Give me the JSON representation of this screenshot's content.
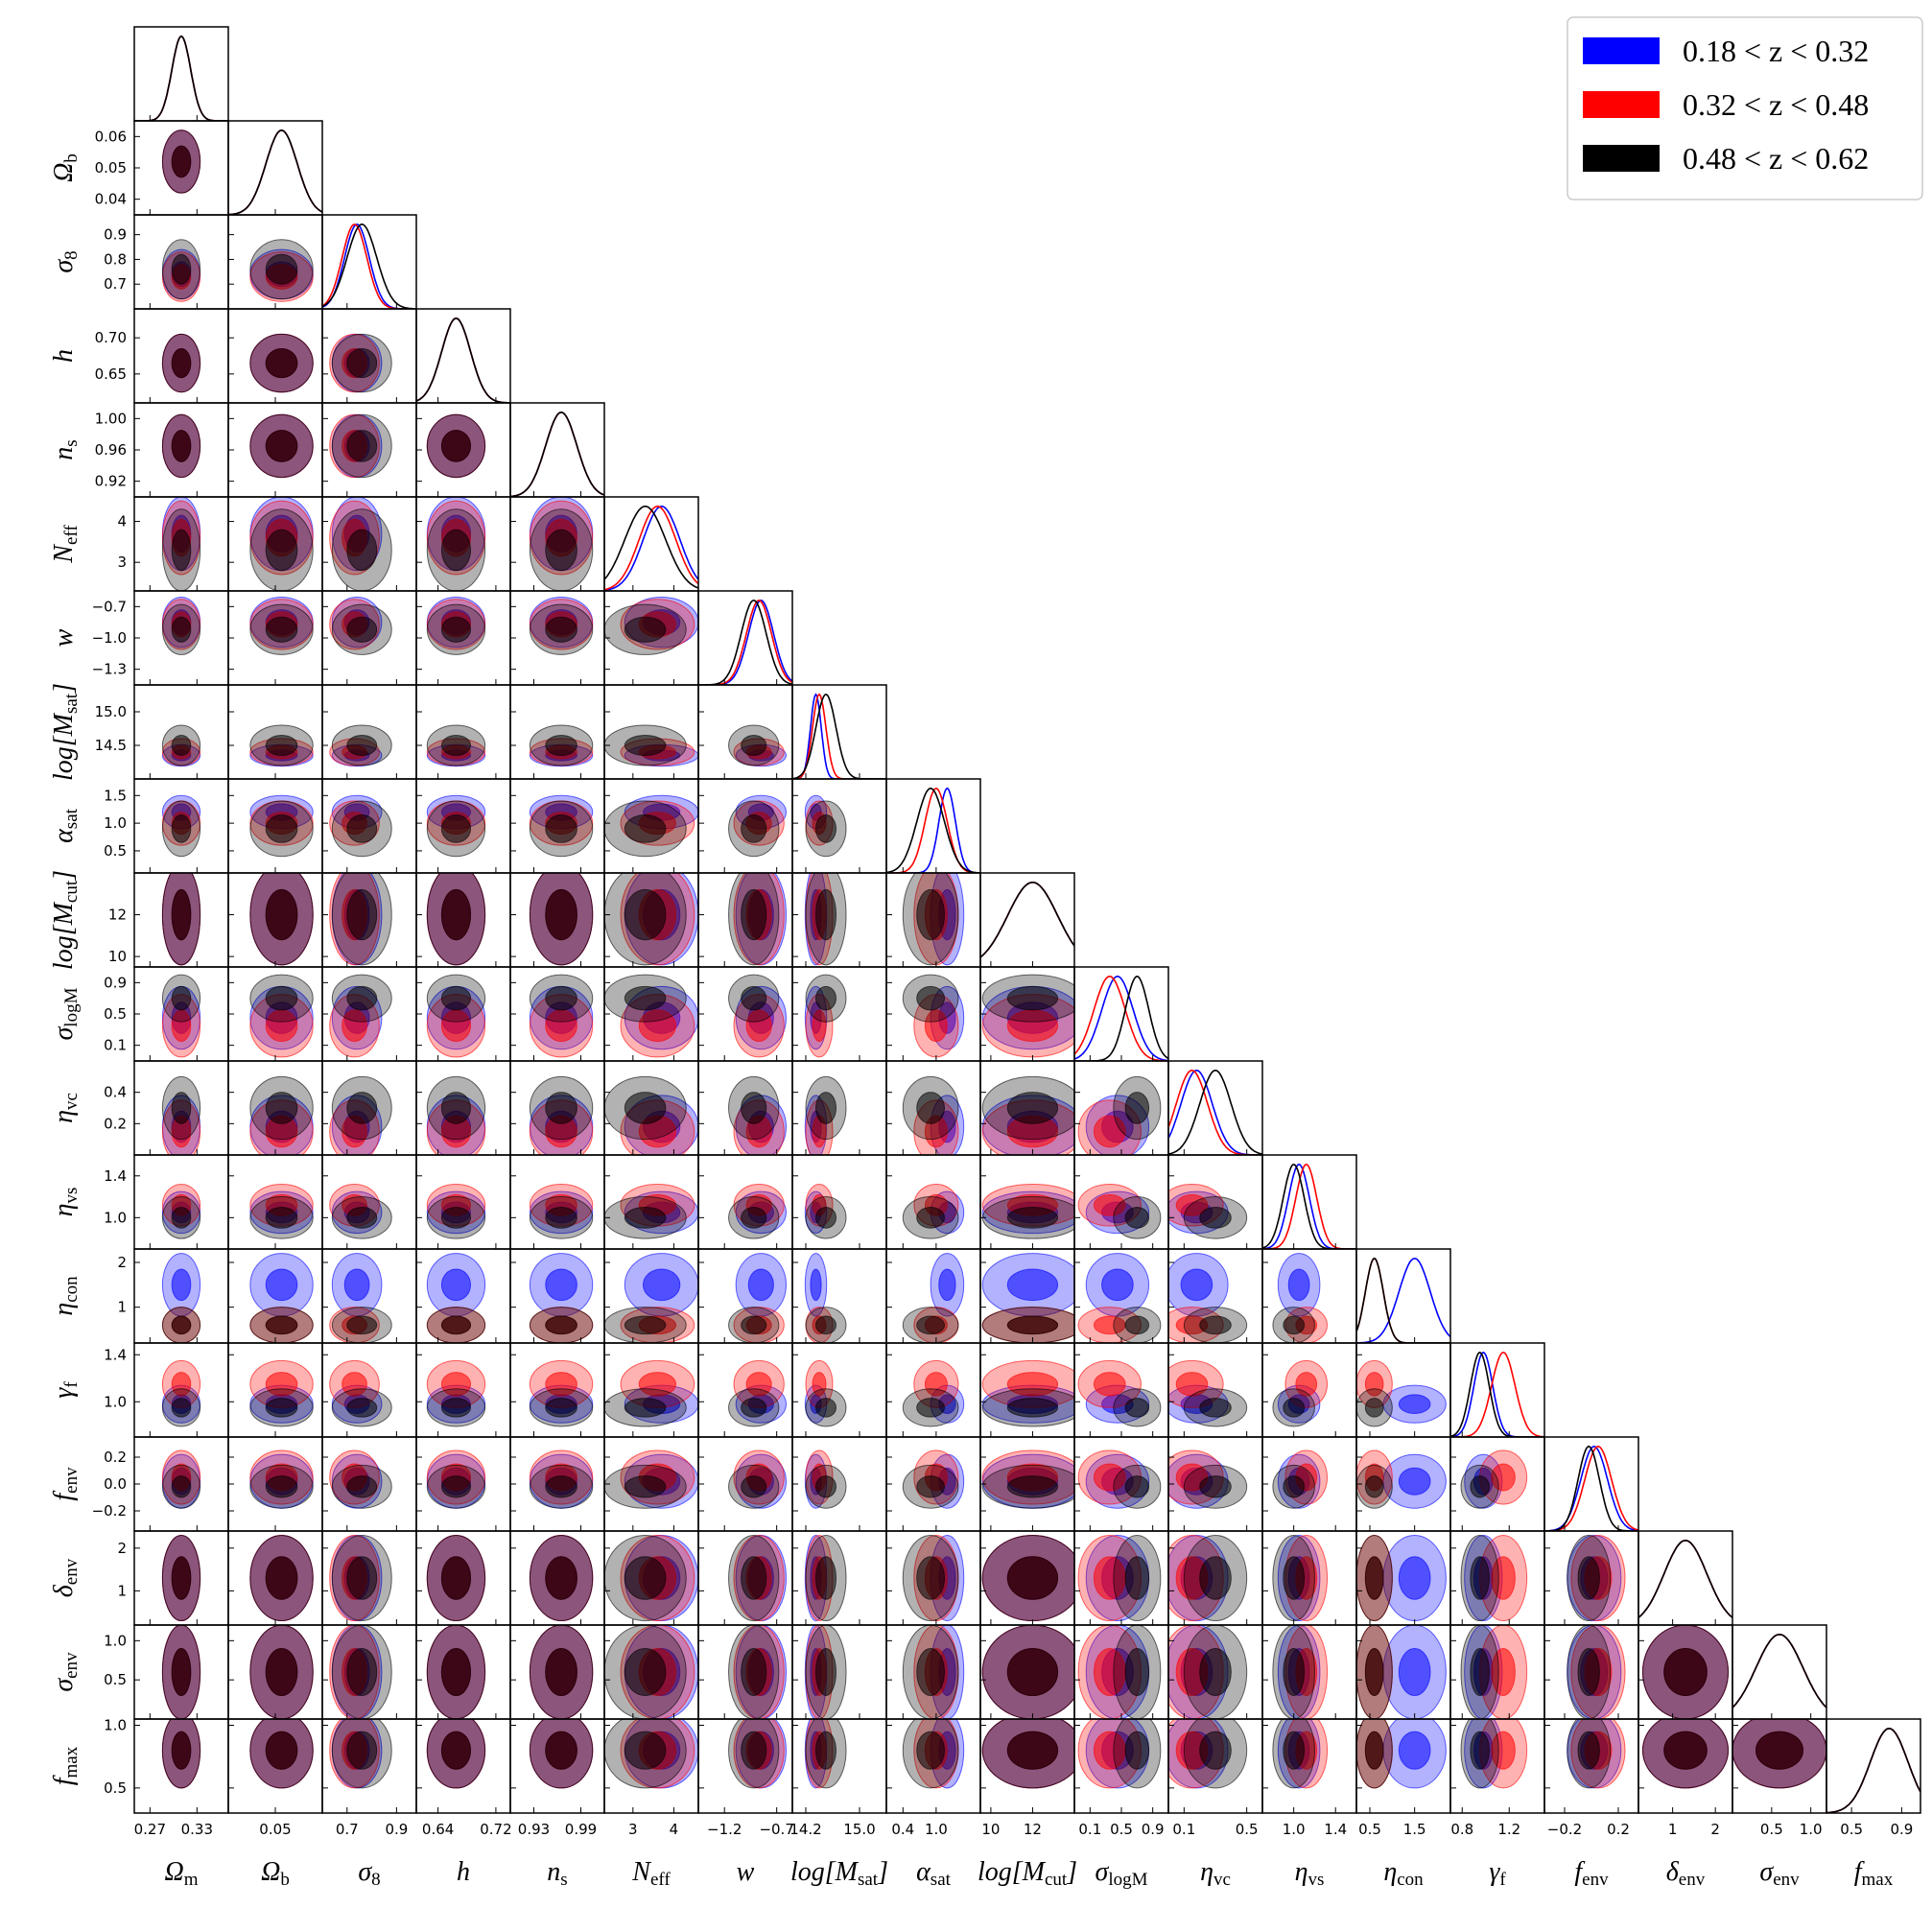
{
  "chart_data": {
    "type": "corner",
    "legend": "upper right",
    "series": [
      {
        "name": "0.18 < z < 0.32",
        "color": "#0000ff",
        "mean": [
          0.31,
          0.052,
          0.74,
          0.665,
          0.965,
          3.7,
          -0.85,
          14.35,
          1.2,
          12,
          0.45,
          0.18,
          1.05,
          1.5,
          0.98,
          0.02,
          1.3,
          0.6,
          0.8
        ],
        "std": [
          0.012,
          0.005,
          0.05,
          0.02,
          0.02,
          0.45,
          0.12,
          0.08,
          0.15,
          1.2,
          0.2,
          0.1,
          0.1,
          0.35,
          0.08,
          0.1,
          0.5,
          0.3,
          0.15
        ]
      },
      {
        "name": "0.32 < z < 0.48",
        "color": "#ff0000",
        "mean": [
          0.31,
          0.052,
          0.73,
          0.665,
          0.965,
          3.6,
          -0.87,
          14.4,
          1.0,
          12,
          0.35,
          0.15,
          1.12,
          0.6,
          1.15,
          0.05,
          1.3,
          0.6,
          0.8
        ],
        "std": [
          0.012,
          0.005,
          0.05,
          0.02,
          0.02,
          0.45,
          0.12,
          0.1,
          0.2,
          1.2,
          0.2,
          0.1,
          0.1,
          0.2,
          0.1,
          0.1,
          0.5,
          0.3,
          0.15
        ]
      },
      {
        "name": "0.48 < z < 0.62",
        "color": "#000000",
        "mean": [
          0.31,
          0.052,
          0.76,
          0.665,
          0.965,
          3.3,
          -0.92,
          14.5,
          0.9,
          12,
          0.7,
          0.3,
          1.0,
          0.6,
          0.95,
          -0.02,
          1.3,
          0.6,
          0.8
        ],
        "std": [
          0.012,
          0.005,
          0.06,
          0.02,
          0.02,
          0.5,
          0.12,
          0.15,
          0.25,
          1.2,
          0.15,
          0.1,
          0.1,
          0.2,
          0.08,
          0.08,
          0.5,
          0.3,
          0.15
        ]
      }
    ],
    "params": [
      {
        "label": [
          {
            "t": "Ω"
          },
          {
            "t": "m",
            "sub": true
          }
        ],
        "lim": [
          0.25,
          0.37
        ],
        "xticks": [
          0.27,
          0.33
        ],
        "yticks": []
      },
      {
        "label": [
          {
            "t": "Ω"
          },
          {
            "t": "b",
            "sub": true
          }
        ],
        "lim": [
          0.035,
          0.065
        ],
        "xticks": [
          0.05
        ],
        "yticks": [
          0.04,
          0.05,
          0.06
        ]
      },
      {
        "label": [
          {
            "t": "σ"
          },
          {
            "t": "8",
            "sub": true
          }
        ],
        "lim": [
          0.6,
          0.98
        ],
        "xticks": [
          0.7,
          0.9
        ],
        "yticks": [
          0.7,
          0.8,
          0.9
        ]
      },
      {
        "label": [
          {
            "t": "h"
          }
        ],
        "lim": [
          0.61,
          0.74
        ],
        "xticks": [
          0.64,
          0.72
        ],
        "yticks": [
          0.65,
          {
            "value": 0.7,
            "label": "0.70"
          }
        ]
      },
      {
        "label": [
          {
            "t": "n"
          },
          {
            "t": "s",
            "sub": true
          }
        ],
        "lim": [
          0.9,
          1.02
        ],
        "xticks": [
          0.93,
          0.99
        ],
        "yticks": [
          0.92,
          0.96,
          {
            "value": 1,
            "label": "1.00"
          }
        ]
      },
      {
        "label": [
          {
            "t": "N"
          },
          {
            "t": "eff",
            "sub": true
          }
        ],
        "lim": [
          2.3,
          4.6
        ],
        "xticks": [
          3,
          4
        ],
        "yticks": [
          3,
          4
        ]
      },
      {
        "label": [
          {
            "t": "w"
          }
        ],
        "lim": [
          -1.45,
          -0.55
        ],
        "xticks": [
          {
            "value": -1.2,
            "label": "−1.2"
          },
          {
            "value": -0.7,
            "label": "−0.7"
          }
        ],
        "yticks": [
          {
            "value": -1.3,
            "label": "−1.3"
          },
          {
            "value": -1,
            "label": "−1.0"
          },
          {
            "value": -0.7,
            "label": "−0.7"
          }
        ]
      },
      {
        "label": [
          {
            "t": "log[M"
          },
          {
            "t": "sat",
            "sub": true
          },
          {
            "t": "]"
          }
        ],
        "lim": [
          14.0,
          15.4
        ],
        "xticks": [
          14.2,
          {
            "value": 15,
            "label": "15.0"
          }
        ],
        "yticks": [
          14.5,
          {
            "value": 15,
            "label": "15.0"
          }
        ]
      },
      {
        "label": [
          {
            "t": "α"
          },
          {
            "t": "sat",
            "sub": true
          }
        ],
        "lim": [
          0.1,
          1.8
        ],
        "xticks": [
          0.4,
          {
            "value": 1,
            "label": "1.0"
          }
        ],
        "yticks": [
          0.5,
          {
            "value": 1,
            "label": "1.0"
          },
          1.5
        ]
      },
      {
        "label": [
          {
            "t": "log[M"
          },
          {
            "t": "cut",
            "sub": true
          },
          {
            "t": "]"
          }
        ],
        "lim": [
          9.5,
          14
        ],
        "xticks": [
          10,
          12
        ],
        "yticks": [
          10,
          12
        ]
      },
      {
        "label": [
          {
            "t": "σ"
          },
          {
            "t": "logM",
            "sub": true
          }
        ],
        "lim": [
          -0.1,
          1.1
        ],
        "xticks": [
          0.1,
          0.5,
          0.9
        ],
        "yticks": [
          0.1,
          0.5,
          0.9
        ]
      },
      {
        "label": [
          {
            "t": "η"
          },
          {
            "t": "vc",
            "sub": true
          }
        ],
        "lim": [
          0,
          0.6
        ],
        "xticks": [
          0.1,
          0.5
        ],
        "yticks": [
          0.2,
          0.4
        ]
      },
      {
        "label": [
          {
            "t": "η"
          },
          {
            "t": "vs",
            "sub": true
          }
        ],
        "lim": [
          0.7,
          1.6
        ],
        "xticks": [
          {
            "value": 1,
            "label": "1.0"
          },
          1.4
        ],
        "yticks": [
          {
            "value": 1,
            "label": "1.0"
          },
          1.4
        ]
      },
      {
        "label": [
          {
            "t": "η"
          },
          {
            "t": "con",
            "sub": true
          }
        ],
        "lim": [
          0.2,
          2.3
        ],
        "xticks": [
          0.5,
          1.5
        ],
        "yticks": [
          1,
          2
        ]
      },
      {
        "label": [
          {
            "t": "γ"
          },
          {
            "t": "f",
            "sub": true
          }
        ],
        "lim": [
          0.7,
          1.5
        ],
        "xticks": [
          0.8,
          1.2
        ],
        "yticks": [
          {
            "value": 1,
            "label": "1.0"
          },
          1.4
        ]
      },
      {
        "label": [
          {
            "t": "f"
          },
          {
            "t": "env",
            "sub": true
          }
        ],
        "lim": [
          -0.35,
          0.35
        ],
        "xticks": [
          {
            "value": -0.2,
            "label": "−0.2"
          },
          0.2
        ],
        "yticks": [
          {
            "value": -0.2,
            "label": "−0.2"
          },
          {
            "value": 0,
            "label": "0.0"
          },
          0.2
        ]
      },
      {
        "label": [
          {
            "t": "δ"
          },
          {
            "t": "env",
            "sub": true
          }
        ],
        "lim": [
          0.2,
          2.4
        ],
        "xticks": [
          1,
          2
        ],
        "yticks": [
          1,
          2
        ]
      },
      {
        "label": [
          {
            "t": "σ"
          },
          {
            "t": "env",
            "sub": true
          }
        ],
        "lim": [
          0,
          1.2
        ],
        "xticks": [
          0.5,
          {
            "value": 1,
            "label": "1.0"
          }
        ],
        "yticks": [
          0.5,
          {
            "value": 1,
            "label": "1.0"
          }
        ]
      },
      {
        "label": [
          {
            "t": "f"
          },
          {
            "t": "max",
            "sub": true
          }
        ],
        "lim": [
          0.3,
          1.05
        ],
        "xticks": [
          0.5,
          0.9
        ],
        "yticks": [
          0.5,
          {
            "value": 1,
            "label": "1.0"
          }
        ]
      }
    ]
  }
}
